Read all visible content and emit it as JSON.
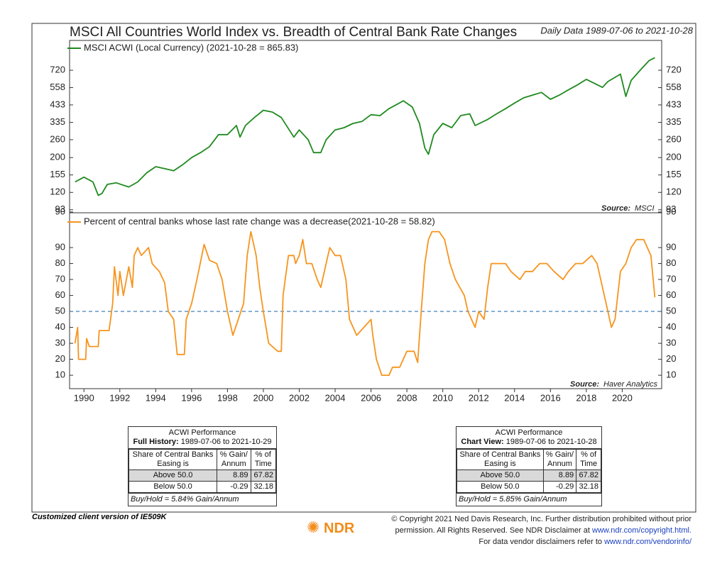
{
  "chart_data": [
    {
      "type": "line",
      "title": "MSCI All Countries World Index vs. Breadth of Central Bank Rate Changes",
      "subtitle": "Daily Data 1989-07-06 to 2021-10-28",
      "source_label": "Source:",
      "source": "MSCI",
      "log_scale": true,
      "xlim": [
        1989.2,
        2022.2
      ],
      "ylim": [
        89,
        1115
      ],
      "yticks": [
        90,
        93,
        120,
        155,
        200,
        260,
        335,
        433,
        558,
        720
      ],
      "x": [
        1989.51,
        1990.0,
        1990.5,
        1990.8,
        1991.0,
        1991.3,
        1991.8,
        1992.5,
        1993.0,
        1993.5,
        1994.0,
        1994.5,
        1995.0,
        1995.5,
        1996.0,
        1996.5,
        1997.0,
        1997.5,
        1998.0,
        1998.5,
        1998.7,
        1999.0,
        1999.5,
        2000.0,
        2000.5,
        2001.0,
        2001.7,
        2002.0,
        2002.5,
        2002.8,
        2003.2,
        2003.5,
        2004.0,
        2004.5,
        2005.0,
        2005.5,
        2006.0,
        2006.5,
        2007.0,
        2007.5,
        2007.8,
        2008.3,
        2008.7,
        2009.0,
        2009.2,
        2009.5,
        2010.0,
        2010.5,
        2011.0,
        2011.5,
        2011.8,
        2012.5,
        2013.0,
        2013.5,
        2014.0,
        2014.5,
        2015.0,
        2015.5,
        2016.0,
        2016.5,
        2017.0,
        2017.5,
        2018.0,
        2018.9,
        2019.2,
        2019.9,
        2020.2,
        2020.5,
        2021.0,
        2021.5,
        2021.82
      ],
      "series": [
        {
          "name": "MSCI ACWI (Local Currency) (2021-10-28 = 865.83)",
          "color": "#1f8a1f",
          "values": [
            140,
            150,
            140,
            115,
            118,
            135,
            138,
            130,
            140,
            160,
            175,
            170,
            165,
            180,
            200,
            215,
            235,
            280,
            280,
            320,
            270,
            320,
            360,
            400,
            390,
            360,
            270,
            300,
            260,
            215,
            215,
            260,
            300,
            310,
            330,
            340,
            375,
            370,
            410,
            440,
            460,
            420,
            330,
            230,
            210,
            280,
            330,
            310,
            370,
            380,
            320,
            350,
            380,
            410,
            445,
            480,
            500,
            520,
            470,
            500,
            540,
            580,
            630,
            560,
            610,
            680,
            490,
            620,
            720,
            830,
            865.83
          ]
        }
      ]
    },
    {
      "type": "line",
      "source_label": "Source:",
      "source": "Haver Analytics",
      "xlim": [
        1989.2,
        2022.2
      ],
      "xticks": [
        1990,
        1992,
        1994,
        1996,
        1998,
        2000,
        2002,
        2004,
        2006,
        2008,
        2010,
        2012,
        2014,
        2016,
        2018,
        2020
      ],
      "ylim": [
        1.6,
        111.8
      ],
      "yticks": [
        10,
        20,
        30,
        40,
        50,
        60,
        70,
        80,
        90
      ],
      "reference_line": 50,
      "reference_color": "#2e75b6",
      "x": [
        1989.5,
        1989.65,
        1989.7,
        1990.1,
        1990.15,
        1990.3,
        1990.8,
        1990.85,
        1991.4,
        1991.6,
        1991.7,
        1991.9,
        1992.0,
        1992.2,
        1992.5,
        1992.7,
        1992.8,
        1993.0,
        1993.2,
        1993.6,
        1993.8,
        1994.2,
        1994.5,
        1994.7,
        1995.0,
        1995.2,
        1995.6,
        1995.7,
        1996.0,
        1996.3,
        1996.7,
        1997.0,
        1997.4,
        1997.7,
        1998.0,
        1998.3,
        1998.6,
        1998.9,
        1999.1,
        1999.3,
        1999.6,
        1999.8,
        2000.0,
        2000.3,
        2000.8,
        2001.0,
        2001.1,
        2001.4,
        2001.7,
        2001.8,
        2002.0,
        2002.2,
        2002.4,
        2002.7,
        2003.0,
        2003.2,
        2003.5,
        2003.7,
        2004.0,
        2004.3,
        2004.6,
        2004.8,
        2005.2,
        2005.6,
        2006.0,
        2006.1,
        2006.3,
        2006.6,
        2007.0,
        2007.2,
        2007.6,
        2008.0,
        2008.4,
        2008.6,
        2008.8,
        2009.0,
        2009.2,
        2009.4,
        2009.8,
        2010.1,
        2010.4,
        2010.7,
        2011.2,
        2011.4,
        2011.8,
        2012.0,
        2012.3,
        2012.5,
        2012.7,
        2013.0,
        2013.5,
        2013.8,
        2014.3,
        2014.6,
        2015.0,
        2015.4,
        2015.8,
        2016.2,
        2016.7,
        2017.0,
        2017.4,
        2017.8,
        2018.3,
        2018.6,
        2018.8,
        2019.1,
        2019.4,
        2019.6,
        2019.9,
        2020.2,
        2020.5,
        2020.8,
        2021.2,
        2021.6,
        2021.82
      ],
      "series": [
        {
          "name": "Percent of central banks whose last rate change was a decrease(2021-10-28 = 58.82)",
          "color": "#f7941d",
          "values": [
            30,
            40,
            20,
            20,
            33,
            28,
            28,
            38,
            38,
            55,
            78,
            60,
            75,
            60,
            78,
            65,
            85,
            90,
            85,
            90,
            80,
            75,
            68,
            50,
            45,
            23,
            23,
            45,
            55,
            70,
            92,
            82,
            80,
            70,
            50,
            35,
            45,
            55,
            85,
            100,
            85,
            65,
            50,
            30,
            25,
            25,
            60,
            85,
            85,
            80,
            85,
            95,
            80,
            80,
            70,
            65,
            80,
            90,
            85,
            85,
            70,
            45,
            35,
            40,
            45,
            35,
            20,
            10,
            10,
            15,
            15,
            25,
            25,
            18,
            50,
            80,
            95,
            100,
            100,
            95,
            80,
            70,
            60,
            50,
            40,
            50,
            45,
            65,
            80,
            80,
            80,
            75,
            70,
            75,
            75,
            80,
            80,
            75,
            70,
            75,
            80,
            80,
            85,
            80,
            70,
            55,
            40,
            45,
            75,
            80,
            90,
            95,
            95,
            85,
            58.82
          ]
        }
      ]
    }
  ],
  "tables": [
    {
      "title": "ACWI Performance",
      "period_label": "Full History:",
      "period": "1989-07-06 to 2021-10-29",
      "header": [
        [
          "Share of Central Banks",
          "Easing is"
        ],
        [
          "% Gain/",
          "Annum"
        ],
        [
          "% of",
          "Time"
        ]
      ],
      "rows": [
        [
          "Above 50.0",
          "8.89",
          "67.82"
        ],
        [
          "Below 50.0",
          "-0.29",
          "32.18"
        ]
      ],
      "footer": "Buy/Hold = 5.84% Gain/Annum"
    },
    {
      "title": "ACWI Performance",
      "period_label": "Chart View:",
      "period": "1989-07-06 to 2021-10-28",
      "header": [
        [
          "Share of Central Banks",
          "Easing is"
        ],
        [
          "% Gain/",
          "Annum"
        ],
        [
          "% of",
          "Time"
        ]
      ],
      "rows": [
        [
          "Above 50.0",
          "8.89",
          "67.82"
        ],
        [
          "Below 50.0",
          "-0.29",
          "32.18"
        ]
      ],
      "footer": "Buy/Hold = 5.85% Gain/Annum"
    }
  ],
  "footer": {
    "client_note": "Customized client version of IE509K",
    "logo": "NDR",
    "copyright_1": "© Copyright 2021 Ned Davis Research, Inc. Further distribution prohibited without prior",
    "copyright_2": "permission. All Rights Reserved. See NDR Disclaimer at",
    "copyright_link": "www.ndr.com/copyright.html.",
    "vendor_text": "For data vendor disclaimers refer to",
    "vendor_link": "www.ndr.com/vendorinfo/"
  }
}
